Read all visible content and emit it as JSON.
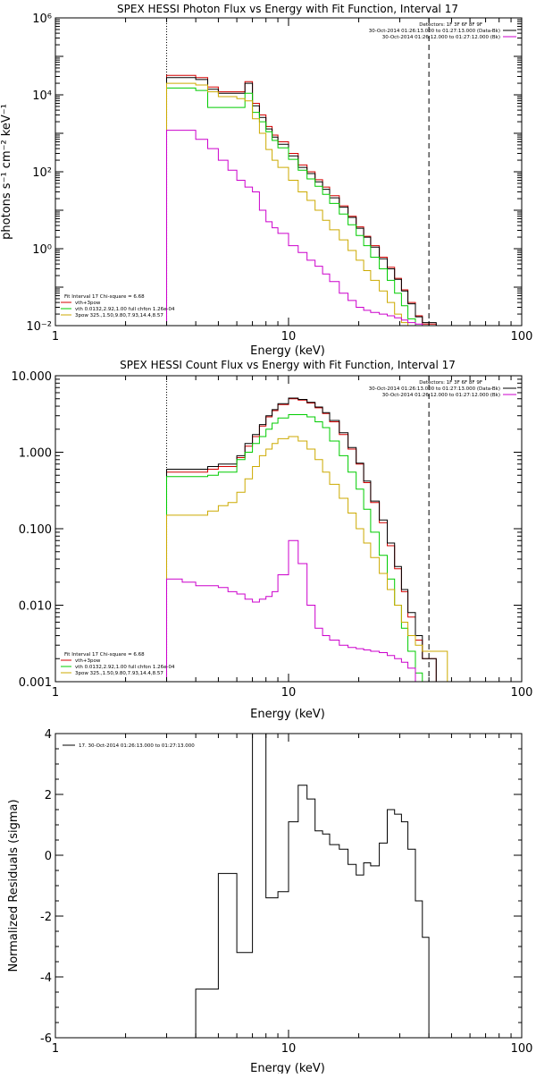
{
  "chart_data": [
    {
      "type": "line",
      "title": "SPEX HESSI Photon Flux vs Energy with Fit Function, Interval 17",
      "xlabel": "Energy (keV)",
      "ylabel": "photons s⁻¹ cm⁻² keV⁻¹",
      "xscale": "log",
      "yscale": "log",
      "xlim": [
        1,
        100
      ],
      "ylim": [
        0.01,
        1000000
      ],
      "x_ticks": [
        1,
        10,
        100
      ],
      "x_tick_labels": [
        "1",
        "10",
        "100"
      ],
      "y_ticks": [
        0.01,
        1,
        100,
        10000,
        1000000
      ],
      "y_tick_labels": [
        "10⁻²",
        "10⁰",
        "10²",
        "10⁴",
        "10⁶"
      ],
      "vlines": [
        {
          "x": 3,
          "style": "dotted"
        },
        {
          "x": 40,
          "style": "dashed"
        }
      ],
      "legend_top": {
        "placement": "top-right",
        "lines": [
          "Detectors: 1F 3F 6F 8F 9F",
          "30-Oct-2014 01:26:13.000 to 01:27:13.000 (Data-Bk)",
          "30-Oct-2014 01:26:12.000 to 01:27:12.000 (Bk)"
        ],
        "colors": [
          "#000000",
          "#000000",
          "#cc00cc"
        ]
      },
      "legend_bottom": {
        "placement": "bottom-left",
        "lines": [
          "Fit Interval 17    Chi-square = 6.68",
          "vth+3pow",
          "vth 0.0132,2.92,1.00  full chfon 1.26e-04",
          "3pow 325.,1.50,9.80,7.93,14.4,8.57"
        ],
        "colors": [
          "#000000",
          "#d40000",
          "#00cc00",
          "#ccaa00"
        ]
      },
      "x": [
        3.0,
        3.5,
        4.0,
        4.5,
        5.0,
        5.5,
        6.0,
        6.5,
        7.0,
        7.5,
        8.0,
        8.5,
        9.0,
        10.0,
        11.0,
        12.0,
        13.0,
        14.0,
        15.0,
        16.5,
        18.0,
        19.5,
        21.0,
        22.5,
        24.5,
        26.5,
        28.5,
        30.5,
        32.5,
        35.0,
        37.5,
        40.0,
        43.0
      ],
      "series": [
        {
          "name": "vth+3pow",
          "color": "#d40000",
          "values": [
            32000,
            32000,
            28000,
            16000,
            12000,
            12000,
            12000,
            22000,
            6000,
            3000,
            1500,
            900,
            600,
            300,
            150,
            100,
            62,
            40,
            24,
            13,
            7,
            3.7,
            2.1,
            1.2,
            0.6,
            0.33,
            0.17,
            0.085,
            0.04,
            0.018,
            0.011,
            0.011,
            null
          ]
        },
        {
          "name": "Data-Bk",
          "color": "#000000",
          "values": [
            28000,
            28000,
            25000,
            14000,
            11000,
            11000,
            11000,
            20000,
            5200,
            2600,
            1300,
            800,
            520,
            260,
            130,
            90,
            55,
            35,
            21,
            12,
            6.5,
            3.4,
            2.0,
            1.1,
            0.55,
            0.3,
            0.16,
            0.08,
            0.037,
            0.017,
            0.012,
            0.012,
            null
          ]
        },
        {
          "name": "vth",
          "color": "#00cc00",
          "values": [
            15000,
            15000,
            13000,
            4700,
            4700,
            4700,
            4700,
            11000,
            3500,
            2000,
            1100,
            650,
            420,
            210,
            110,
            65,
            42,
            26,
            15,
            8,
            4.2,
            2.2,
            1.2,
            0.6,
            0.3,
            0.15,
            0.07,
            0.033,
            0.015,
            0.01,
            null,
            null,
            null
          ]
        },
        {
          "name": "3pow",
          "color": "#ccaa00",
          "values": [
            20000,
            20000,
            18000,
            12000,
            9000,
            9000,
            8000,
            7000,
            2400,
            1000,
            380,
            200,
            130,
            60,
            30,
            18,
            10,
            5.5,
            3.1,
            1.7,
            0.9,
            0.5,
            0.27,
            0.15,
            0.08,
            0.04,
            0.02,
            0.012,
            null,
            null,
            null,
            null,
            null
          ]
        },
        {
          "name": "Bk",
          "color": "#cc00cc",
          "values": [
            1200,
            1200,
            700,
            400,
            200,
            110,
            60,
            40,
            30,
            10,
            5,
            3.5,
            2.5,
            1.2,
            0.8,
            0.5,
            0.35,
            0.22,
            0.14,
            0.07,
            0.045,
            0.03,
            0.025,
            0.022,
            0.02,
            0.018,
            0.016,
            0.014,
            0.012,
            0.011,
            0.01,
            0.01,
            null
          ]
        }
      ]
    },
    {
      "type": "line",
      "title": "SPEX HESSI Count Flux vs Energy with Fit Function, Interval 17",
      "xlabel": "Energy (keV)",
      "ylabel": "",
      "xscale": "log",
      "yscale": "log",
      "xlim": [
        1,
        100
      ],
      "ylim": [
        0.001,
        10
      ],
      "x_ticks": [
        1,
        10,
        100
      ],
      "x_tick_labels": [
        "1",
        "10",
        "100"
      ],
      "y_ticks": [
        0.001,
        0.01,
        0.1,
        1,
        10
      ],
      "y_tick_labels": [
        "0.001",
        "0.010",
        "0.100",
        "1.000",
        "10.000"
      ],
      "vlines": [
        {
          "x": 3,
          "style": "dotted"
        },
        {
          "x": 40,
          "style": "dashed"
        }
      ],
      "legend_top": {
        "placement": "top-right",
        "lines": [
          "Detectors: 1F 3F 6F 8F 9F",
          "30-Oct-2014 01:26:13.000 to 01:27:13.000 (Data-Bk)",
          "30-Oct-2014 01:26:12.000 to 01:27:12.000 (Bk)"
        ],
        "colors": [
          "#000000",
          "#000000",
          "#cc00cc"
        ]
      },
      "legend_bottom": {
        "placement": "bottom-left",
        "lines": [
          "Fit Interval 17    Chi-square = 6.68",
          "vth+3pow",
          "vth 0.0132,2.92,1.00  full chfon 1.26e-04",
          "3pow 325.,1.50,9.80,7.93,14.4,8.57"
        ],
        "colors": [
          "#000000",
          "#d40000",
          "#00cc00",
          "#ccaa00"
        ]
      },
      "x": [
        3.0,
        3.5,
        4.0,
        4.5,
        5.0,
        5.5,
        6.0,
        6.5,
        7.0,
        7.5,
        8.0,
        8.5,
        9.0,
        10.0,
        11.0,
        12.0,
        13.0,
        14.0,
        15.0,
        16.5,
        18.0,
        19.5,
        21.0,
        22.5,
        24.5,
        26.5,
        28.5,
        30.5,
        32.5,
        35.0,
        37.5,
        40.0,
        43.0,
        48.0
      ],
      "series": [
        {
          "name": "vth+3pow",
          "color": "#d40000",
          "values": [
            0.55,
            0.55,
            0.55,
            0.6,
            0.65,
            0.65,
            0.85,
            1.2,
            1.6,
            2.2,
            2.9,
            3.5,
            4.2,
            5.0,
            4.8,
            4.4,
            3.8,
            3.2,
            2.5,
            1.7,
            1.1,
            0.7,
            0.4,
            0.22,
            0.12,
            0.06,
            0.03,
            0.015,
            0.007,
            0.0035,
            0.002,
            0.002,
            null,
            null
          ]
        },
        {
          "name": "Data-Bk",
          "color": "#000000",
          "values": [
            0.6,
            0.6,
            0.6,
            0.65,
            0.7,
            0.7,
            0.9,
            1.3,
            1.7,
            2.3,
            3.0,
            3.6,
            4.3,
            5.1,
            4.9,
            4.5,
            3.9,
            3.3,
            2.6,
            1.8,
            1.15,
            0.72,
            0.42,
            0.23,
            0.13,
            0.065,
            0.032,
            0.016,
            0.008,
            0.004,
            0.002,
            0.002,
            null,
            null
          ]
        },
        {
          "name": "vth",
          "color": "#00cc00",
          "values": [
            0.48,
            0.48,
            0.48,
            0.5,
            0.55,
            0.55,
            0.8,
            1.0,
            1.3,
            1.6,
            2.0,
            2.4,
            2.8,
            3.1,
            3.1,
            2.9,
            2.5,
            2.1,
            1.4,
            0.9,
            0.55,
            0.33,
            0.18,
            0.09,
            0.045,
            0.022,
            0.01,
            0.005,
            0.0025,
            0.0013,
            null,
            null,
            null,
            null
          ]
        },
        {
          "name": "3pow",
          "color": "#ccaa00",
          "values": [
            0.15,
            0.15,
            0.15,
            0.17,
            0.2,
            0.22,
            0.3,
            0.45,
            0.65,
            0.9,
            1.1,
            1.3,
            1.5,
            1.6,
            1.4,
            1.1,
            0.8,
            0.55,
            0.38,
            0.25,
            0.16,
            0.1,
            0.065,
            0.042,
            0.026,
            0.016,
            0.01,
            0.006,
            0.004,
            0.003,
            0.0025,
            0.0025,
            0.0025,
            null
          ]
        },
        {
          "name": "Bk",
          "color": "#cc00cc",
          "values": [
            0.022,
            0.02,
            0.018,
            0.018,
            0.017,
            0.015,
            0.014,
            0.012,
            0.011,
            0.012,
            0.013,
            0.015,
            0.025,
            0.07,
            0.035,
            0.01,
            0.005,
            0.004,
            0.0035,
            0.003,
            0.0028,
            0.0027,
            0.0026,
            0.0025,
            0.0024,
            0.0022,
            0.002,
            0.0018,
            0.0015,
            null,
            null,
            null,
            null,
            null
          ]
        }
      ]
    },
    {
      "type": "line",
      "title": "",
      "xlabel": "Energy (keV)",
      "ylabel": "Normalized Residuals (sigma)",
      "xscale": "log",
      "yscale": "linear",
      "xlim": [
        1,
        100
      ],
      "ylim": [
        -6,
        4
      ],
      "x_ticks": [
        1,
        10,
        100
      ],
      "x_tick_labels": [
        "1",
        "10",
        "100"
      ],
      "y_ticks": [
        -6,
        -4,
        -2,
        0,
        2,
        4
      ],
      "y_tick_labels": [
        "-6",
        "-4",
        "-2",
        "0",
        "2",
        "4"
      ],
      "legend_top": {
        "placement": "top-left",
        "lines": [
          "17. 30-Oct-2014 01:26:13.000 to 01:27:13.000"
        ],
        "colors": [
          "#000000"
        ]
      },
      "x": [
        3.0,
        4.0,
        5.0,
        6.0,
        7.0,
        8.0,
        9.0,
        10.0,
        11.0,
        12.0,
        13.0,
        14.0,
        15.0,
        16.5,
        18.0,
        19.5,
        21.0,
        22.5,
        24.5,
        26.5,
        28.5,
        30.5,
        32.5,
        35.0,
        37.5,
        40.0
      ],
      "series": [
        {
          "name": "17. 30-Oct-2014 01:26:13.000 to 01:27:13.000",
          "color": "#000000",
          "values": [
            -6.0,
            -4.4,
            -0.6,
            -3.2,
            4.0,
            -1.4,
            -1.2,
            1.1,
            2.3,
            1.85,
            0.8,
            0.7,
            0.35,
            0.2,
            -0.3,
            -0.65,
            -0.25,
            -0.35,
            0.4,
            1.5,
            1.35,
            1.1,
            0.2,
            -1.5,
            -2.7,
            -6.0
          ]
        }
      ]
    }
  ]
}
